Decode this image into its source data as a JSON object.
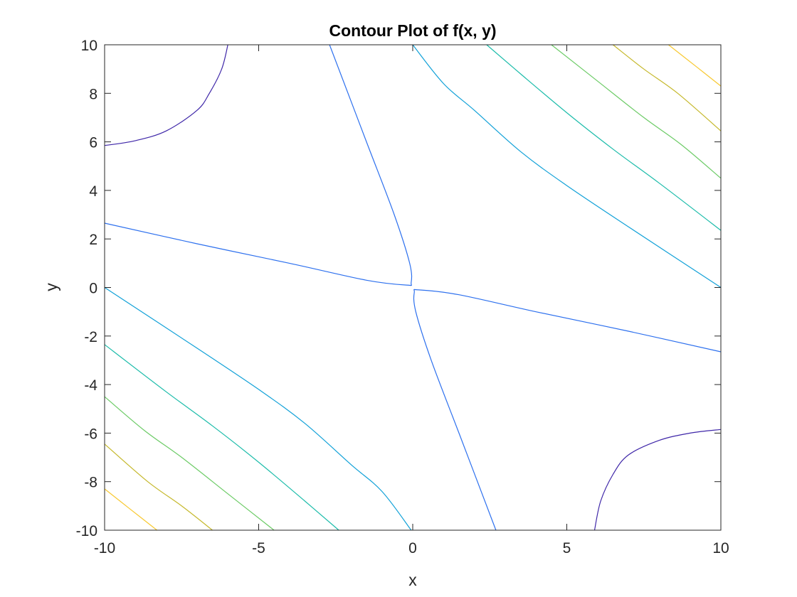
{
  "chart_data": {
    "type": "contour",
    "title": "Contour Plot of f(x, y)",
    "xlabel": "x",
    "ylabel": "y",
    "xlim": [
      -10,
      10
    ],
    "ylim": [
      -10,
      10
    ],
    "xticks": [
      -10,
      -5,
      0,
      5,
      10
    ],
    "xtick_labels": [
      "-10",
      "-5",
      "0",
      "5",
      "10"
    ],
    "yticks": [
      -10,
      -8,
      -6,
      -4,
      -2,
      0,
      2,
      4,
      6,
      8,
      10
    ],
    "ytick_labels": [
      "-10",
      "-8",
      "-6",
      "-4",
      "-2",
      "0",
      "2",
      "4",
      "6",
      "8",
      "10"
    ],
    "grid": false,
    "colormap": "parula",
    "contours": [
      {
        "level": 1,
        "color": "#3e26a8",
        "x": [
          -10,
          -9,
          -8,
          -7,
          -6.6,
          -6.2,
          -6
        ],
        "y": [
          5.85,
          6.05,
          6.45,
          7.3,
          8.0,
          9.0,
          10
        ]
      },
      {
        "level": 1,
        "color": "#3e26a8",
        "x": [
          5.9,
          6.1,
          6.5,
          7,
          8,
          9,
          10
        ],
        "y": [
          -10,
          -8.8,
          -7.7,
          -6.9,
          -6.3,
          -6.0,
          -5.85
        ]
      },
      {
        "level": 2,
        "color": "#2d70ee",
        "x": [
          -2.7,
          -1.5,
          -0.6,
          -0.1,
          -0.05,
          -0.2,
          -1.5,
          -4,
          -7,
          -10
        ],
        "y": [
          10,
          6,
          3,
          1,
          0.2,
          0.1,
          0.3,
          1,
          1.8,
          2.65
        ]
      },
      {
        "level": 2,
        "color": "#2d70ee",
        "x": [
          2.7,
          1.5,
          0.6,
          0.1,
          0.05,
          0.2,
          1.5,
          4,
          7,
          10
        ],
        "y": [
          -10,
          -6,
          -3,
          -1,
          -0.2,
          -0.1,
          -0.3,
          -1,
          -1.8,
          -2.65
        ]
      },
      {
        "level": 3,
        "color": "#11a1d8",
        "x": [
          0,
          1.0,
          2.0,
          3.5,
          5,
          7,
          10
        ],
        "y": [
          10,
          8.4,
          7.3,
          5.6,
          4.2,
          2.5,
          0
        ]
      },
      {
        "level": 3,
        "color": "#11a1d8",
        "x": [
          -0.05,
          -1.0,
          -2.0,
          -3.5,
          -5,
          -7,
          -10
        ],
        "y": [
          -10,
          -8.4,
          -7.3,
          -5.6,
          -4.2,
          -2.5,
          0
        ]
      },
      {
        "level": 4,
        "color": "#1cbcaa",
        "x": [
          2.4,
          3.5,
          5,
          6.5,
          8,
          10
        ],
        "y": [
          10,
          8.8,
          7.2,
          5.7,
          4.3,
          2.35
        ]
      },
      {
        "level": 4,
        "color": "#1cbcaa",
        "x": [
          -2.4,
          -3.5,
          -5,
          -6.5,
          -8,
          -10
        ],
        "y": [
          -10,
          -8.8,
          -7.2,
          -5.7,
          -4.3,
          -2.35
        ]
      },
      {
        "level": 5,
        "color": "#6ccb66",
        "x": [
          4.5,
          6,
          7.5,
          8.7,
          10
        ],
        "y": [
          10,
          8.5,
          7.0,
          5.9,
          4.5
        ]
      },
      {
        "level": 5,
        "color": "#6ccb66",
        "x": [
          -4.5,
          -6,
          -7.5,
          -8.7,
          -10
        ],
        "y": [
          -10,
          -8.5,
          -7.0,
          -5.9,
          -4.5
        ]
      },
      {
        "level": 6,
        "color": "#c5b82b",
        "x": [
          6.5,
          7.5,
          8.6,
          10
        ],
        "y": [
          10,
          9.0,
          8.0,
          6.45
        ]
      },
      {
        "level": 6,
        "color": "#c5b82b",
        "x": [
          -6.5,
          -7.5,
          -8.6,
          -10
        ],
        "y": [
          -10,
          -9.0,
          -8.0,
          -6.45
        ]
      },
      {
        "level": 7,
        "color": "#f8c932",
        "x": [
          8.3,
          9.2,
          10
        ],
        "y": [
          10,
          9.1,
          8.3
        ]
      },
      {
        "level": 7,
        "color": "#f8c932",
        "x": [
          -8.3,
          -9.2,
          -10
        ],
        "y": [
          -10,
          -9.1,
          -8.3
        ]
      }
    ]
  }
}
